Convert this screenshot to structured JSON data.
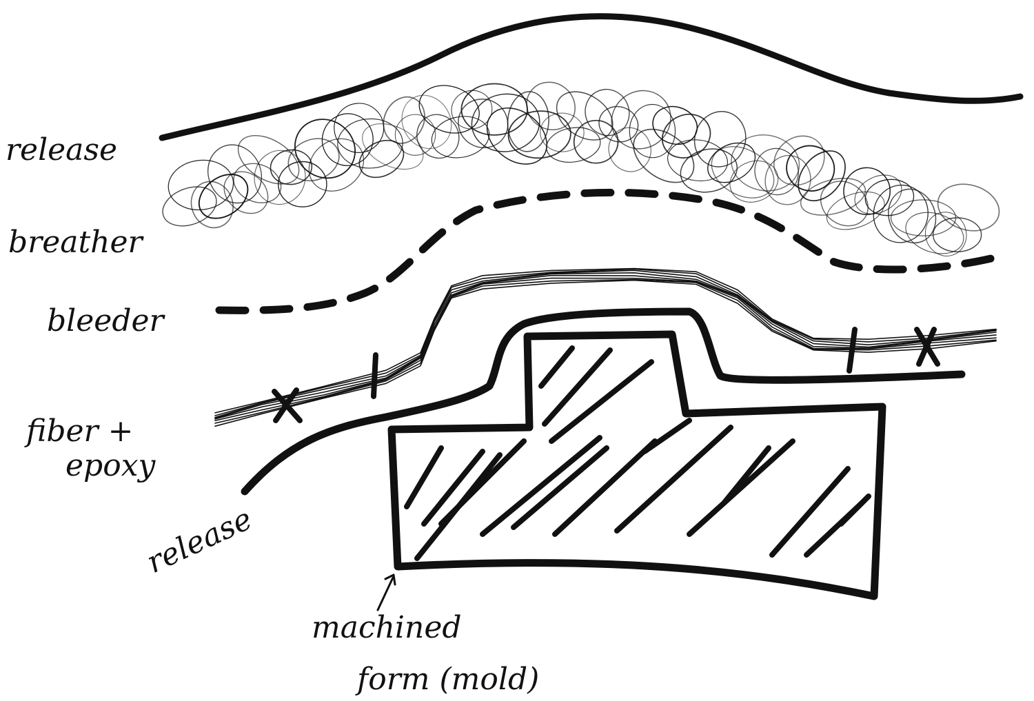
{
  "labels": {
    "release_top": "release",
    "breather": "breather",
    "bleeder": "bleeder",
    "fiber_line1": "fiber +",
    "fiber_line2": "epoxy",
    "release_bottom": "release",
    "mold_line1": "machined",
    "mold_line2": "form (mold)"
  },
  "colors": {
    "ink": "#111111",
    "paper": "#ffffff"
  }
}
